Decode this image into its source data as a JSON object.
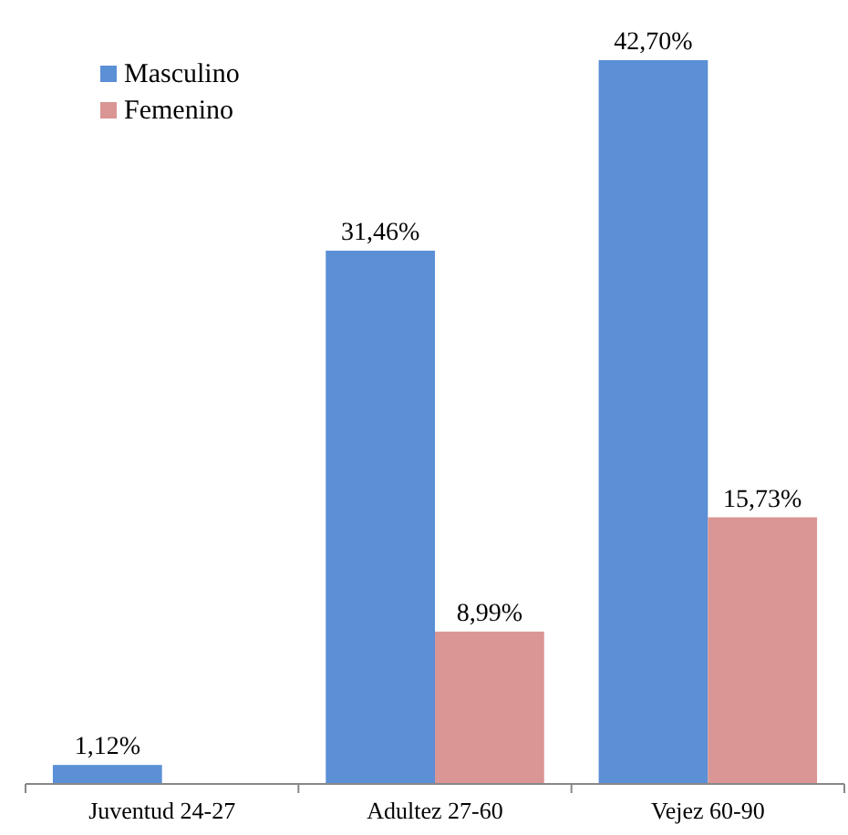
{
  "chart_data": {
    "type": "bar",
    "categories": [
      "Juventud 24-27",
      "Adultez 27-60",
      "Vejez 60-90"
    ],
    "series": [
      {
        "name": "Masculino",
        "color": "#5b8fd6",
        "values": [
          1.12,
          31.46,
          42.7
        ],
        "value_labels": [
          "1,12%",
          "31,46%",
          "42,70%"
        ]
      },
      {
        "name": "Femenino",
        "color": "#d99694",
        "values": [
          null,
          8.99,
          15.73
        ],
        "value_labels": [
          null,
          "8,99%",
          "15,73%"
        ]
      }
    ],
    "legend": "top left"
  }
}
